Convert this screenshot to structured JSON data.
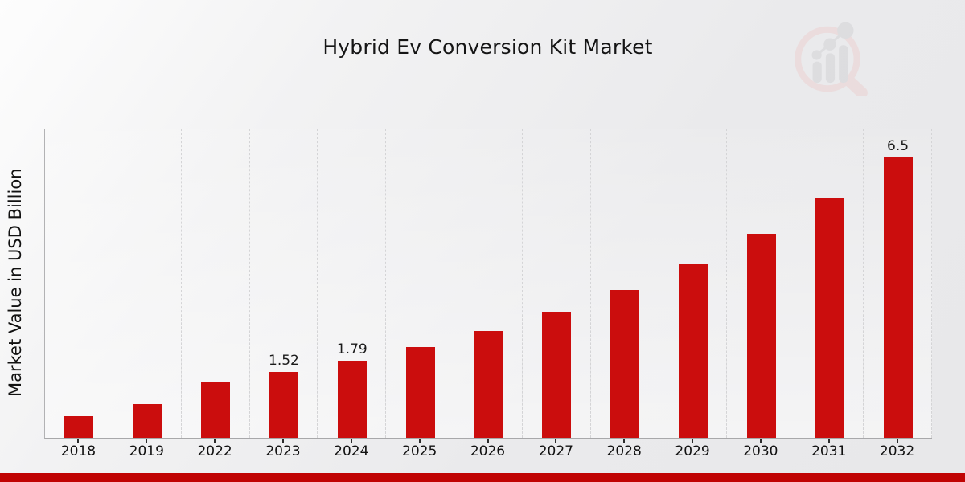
{
  "page": {
    "title": "Hybrid Ev Conversion Kit Market",
    "footer_color": "#c00303"
  },
  "chart_data": {
    "type": "bar",
    "title": "Hybrid Ev Conversion Kit Market",
    "xlabel": "",
    "ylabel": "Market Value in USD Billion",
    "categories": [
      "2018",
      "2019",
      "2022",
      "2023",
      "2024",
      "2025",
      "2026",
      "2027",
      "2028",
      "2029",
      "2030",
      "2031",
      "2032"
    ],
    "values": [
      0.5,
      0.78,
      1.28,
      1.52,
      1.79,
      2.1,
      2.48,
      2.91,
      3.43,
      4.02,
      4.73,
      5.57,
      6.5
    ],
    "bar_labels": [
      "",
      "",
      "",
      "1.52",
      "1.79",
      "",
      "",
      "",
      "",
      "",
      "",
      "",
      "6.5"
    ],
    "bar_color": "#cb0d0d",
    "ylim": [
      0,
      7.17
    ],
    "grid": "vertical-dashed",
    "legend": "none",
    "logo_colors": {
      "ring": "#ecd2d2",
      "glyph": "#d3d3d6"
    }
  }
}
